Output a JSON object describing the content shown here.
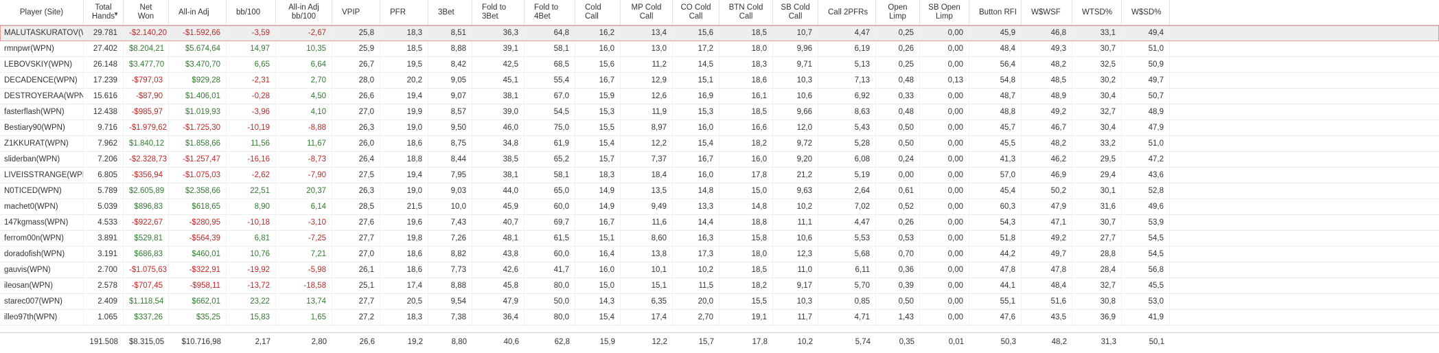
{
  "columns": [
    {
      "key": "player",
      "label": "Player (Site)",
      "align": "center"
    },
    {
      "key": "hands",
      "label": "Total\nHands",
      "align": "center",
      "sorted": true
    },
    {
      "key": "net",
      "label": "Net\nWon",
      "align": "center"
    },
    {
      "key": "allin",
      "label": "All-in Adj",
      "align": "left"
    },
    {
      "key": "bb100",
      "label": "bb/100",
      "align": "left"
    },
    {
      "key": "allinbb",
      "label": "All-in Adj\nbb/100",
      "align": "center"
    },
    {
      "key": "vpip",
      "label": "VPIP",
      "align": "left"
    },
    {
      "key": "pfr",
      "label": "PFR",
      "align": "left"
    },
    {
      "key": "threebet",
      "label": "3Bet",
      "align": "left"
    },
    {
      "key": "f3b",
      "label": "Fold to\n3Bet",
      "align": "left"
    },
    {
      "key": "f4b",
      "label": "Fold to\n4Bet",
      "align": "left"
    },
    {
      "key": "cc",
      "label": "Cold Call",
      "align": "left"
    },
    {
      "key": "mpcc",
      "label": "MP Cold\nCall",
      "align": "center"
    },
    {
      "key": "cocc",
      "label": "CO Cold\nCall",
      "align": "center"
    },
    {
      "key": "btncc",
      "label": "BTN Cold\nCall",
      "align": "center"
    },
    {
      "key": "sbcc",
      "label": "SB Cold\nCall",
      "align": "center"
    },
    {
      "key": "call2",
      "label": "Call 2PFRs",
      "align": "left"
    },
    {
      "key": "ol",
      "label": "Open\nLimp",
      "align": "center"
    },
    {
      "key": "sbol",
      "label": "SB Open\nLimp",
      "align": "center"
    },
    {
      "key": "rfi",
      "label": "Button RFI",
      "align": "left"
    },
    {
      "key": "wwsf",
      "label": "W$WSF",
      "align": "left"
    },
    {
      "key": "wtsd",
      "label": "WTSD%",
      "align": "left"
    },
    {
      "key": "wssd",
      "label": "W$SD%",
      "align": "left"
    }
  ],
  "rows": [
    [
      "MALUTASKURATOV(WP",
      "29.781",
      "-$2.140,20",
      "-$1.592,66",
      "-3,59",
      "-2,67",
      "25,8",
      "18,3",
      "8,51",
      "36,3",
      "64,8",
      "16,2",
      "13,4",
      "15,6",
      "18,5",
      "10,7",
      "4,47",
      "0,25",
      "0,00",
      "45,9",
      "46,8",
      "33,1",
      "49,4"
    ],
    [
      "rmnpwr(WPN)",
      "27.402",
      "$8.204,21",
      "$5.674,64",
      "14,97",
      "10,35",
      "25,9",
      "18,5",
      "8,88",
      "39,1",
      "58,1",
      "16,0",
      "13,0",
      "17,2",
      "18,0",
      "9,96",
      "6,19",
      "0,26",
      "0,00",
      "48,4",
      "49,3",
      "30,7",
      "51,0"
    ],
    [
      "LEBOVSKIY(WPN)",
      "26.148",
      "$3.477,70",
      "$3.470,70",
      "6,65",
      "6,64",
      "26,7",
      "19,5",
      "8,42",
      "42,5",
      "68,5",
      "15,6",
      "11,2",
      "14,5",
      "18,3",
      "9,71",
      "5,13",
      "0,25",
      "0,00",
      "56,4",
      "48,2",
      "32,5",
      "50,9"
    ],
    [
      "DECADENCE(WPN)",
      "17.239",
      "-$797,03",
      "$929,28",
      "-2,31",
      "2,70",
      "28,0",
      "20,2",
      "9,05",
      "45,1",
      "55,4",
      "16,7",
      "12,9",
      "15,1",
      "18,6",
      "10,3",
      "7,13",
      "0,48",
      "0,13",
      "54,8",
      "48,5",
      "30,2",
      "49,7"
    ],
    [
      "DESTROYERAA(WPN)",
      "15.616",
      "-$87,90",
      "$1.406,01",
      "-0,28",
      "4,50",
      "26,6",
      "19,4",
      "9,07",
      "38,1",
      "67,0",
      "15,9",
      "12,6",
      "16,9",
      "16,1",
      "10,6",
      "6,92",
      "0,33",
      "0,00",
      "48,7",
      "48,9",
      "30,4",
      "50,7"
    ],
    [
      "fasterflash(WPN)",
      "12.438",
      "-$985,97",
      "$1.019,93",
      "-3,96",
      "4,10",
      "27,0",
      "19,9",
      "8,57",
      "39,0",
      "54,5",
      "15,3",
      "11,9",
      "15,3",
      "18,5",
      "9,66",
      "8,63",
      "0,48",
      "0,00",
      "48,8",
      "49,2",
      "32,7",
      "48,9"
    ],
    [
      "Bestiary90(WPN)",
      "9.716",
      "-$1.979,62",
      "-$1.725,30",
      "-10,19",
      "-8,88",
      "26,3",
      "19,0",
      "9,50",
      "46,0",
      "75,0",
      "15,5",
      "8,97",
      "16,0",
      "16,6",
      "12,0",
      "5,43",
      "0,50",
      "0,00",
      "45,7",
      "46,7",
      "30,4",
      "47,9"
    ],
    [
      "Z1KKURAT(WPN)",
      "7.962",
      "$1.840,12",
      "$1.858,66",
      "11,56",
      "11,67",
      "26,0",
      "18,6",
      "8,75",
      "34,8",
      "61,9",
      "15,4",
      "12,2",
      "15,4",
      "18,2",
      "9,72",
      "5,28",
      "0,50",
      "0,00",
      "45,5",
      "48,2",
      "33,2",
      "51,0"
    ],
    [
      "sliderban(WPN)",
      "7.206",
      "-$2.328,73",
      "-$1.257,47",
      "-16,16",
      "-8,73",
      "26,4",
      "18,8",
      "8,44",
      "38,5",
      "65,2",
      "15,7",
      "7,37",
      "16,7",
      "16,0",
      "9,20",
      "6,08",
      "0,24",
      "0,00",
      "41,3",
      "46,2",
      "29,5",
      "47,2"
    ],
    [
      "LIVEISSTRANGE(WPN)",
      "6.805",
      "-$356,94",
      "-$1.075,03",
      "-2,62",
      "-7,90",
      "27,5",
      "19,4",
      "7,95",
      "38,1",
      "58,1",
      "18,3",
      "18,4",
      "16,0",
      "17,8",
      "21,2",
      "5,19",
      "0,00",
      "0,00",
      "57,0",
      "46,9",
      "29,4",
      "43,6"
    ],
    [
      "N0TICED(WPN)",
      "5.789",
      "$2.605,89",
      "$2.358,66",
      "22,51",
      "20,37",
      "26,3",
      "19,0",
      "9,03",
      "44,0",
      "65,0",
      "14,9",
      "13,5",
      "14,8",
      "15,0",
      "9,63",
      "2,64",
      "0,61",
      "0,00",
      "45,4",
      "50,2",
      "30,1",
      "52,8"
    ],
    [
      "machet0(WPN)",
      "5.039",
      "$896,83",
      "$618,65",
      "8,90",
      "6,14",
      "28,5",
      "21,5",
      "10,0",
      "45,9",
      "60,0",
      "14,9",
      "9,49",
      "13,3",
      "14,8",
      "10,2",
      "7,02",
      "0,52",
      "0,00",
      "60,3",
      "47,9",
      "31,6",
      "49,6"
    ],
    [
      "147kgmass(WPN)",
      "4.533",
      "-$922,67",
      "-$280,95",
      "-10,18",
      "-3,10",
      "27,6",
      "19,6",
      "7,43",
      "40,7",
      "69,7",
      "16,7",
      "11,6",
      "14,4",
      "18,8",
      "11,1",
      "4,47",
      "0,26",
      "0,00",
      "54,3",
      "47,1",
      "30,7",
      "53,9"
    ],
    [
      "ferrom00n(WPN)",
      "3.891",
      "$529,81",
      "-$564,39",
      "6,81",
      "-7,25",
      "27,7",
      "19,8",
      "7,26",
      "48,1",
      "61,5",
      "15,1",
      "8,60",
      "16,3",
      "15,8",
      "10,6",
      "5,53",
      "0,53",
      "0,00",
      "51,8",
      "49,2",
      "27,7",
      "54,5"
    ],
    [
      "doradofish(WPN)",
      "3.191",
      "$686,83",
      "$460,01",
      "10,76",
      "7,21",
      "27,0",
      "18,6",
      "8,82",
      "43,8",
      "60,0",
      "16,4",
      "13,8",
      "17,3",
      "18,0",
      "12,3",
      "5,68",
      "0,70",
      "0,00",
      "44,2",
      "49,7",
      "28,8",
      "54,5"
    ],
    [
      "gauvis(WPN)",
      "2.700",
      "-$1.075,63",
      "-$322,91",
      "-19,92",
      "-5,98",
      "26,1",
      "18,6",
      "7,73",
      "42,6",
      "41,7",
      "16,0",
      "10,1",
      "10,2",
      "18,5",
      "11,0",
      "6,11",
      "0,36",
      "0,00",
      "47,8",
      "47,8",
      "28,4",
      "56,8"
    ],
    [
      "ileosan(WPN)",
      "2.578",
      "-$707,45",
      "-$958,11",
      "-13,72",
      "-18,58",
      "25,1",
      "17,4",
      "8,88",
      "45,8",
      "80,0",
      "15,0",
      "15,1",
      "11,5",
      "18,2",
      "9,17",
      "5,70",
      "0,39",
      "0,00",
      "44,1",
      "48,4",
      "32,7",
      "45,5"
    ],
    [
      "starec007(WPN)",
      "2.409",
      "$1.118,54",
      "$662,01",
      "23,22",
      "13,74",
      "27,7",
      "20,5",
      "9,54",
      "47,9",
      "50,0",
      "14,3",
      "6,35",
      "20,0",
      "15,5",
      "10,3",
      "0,85",
      "0,50",
      "0,00",
      "55,1",
      "51,6",
      "30,8",
      "53,0"
    ],
    [
      "illeo97th(WPN)",
      "1.065",
      "$337,26",
      "$35,25",
      "15,83",
      "1,65",
      "27,2",
      "18,3",
      "7,38",
      "36,4",
      "80,0",
      "15,4",
      "17,4",
      "2,70",
      "19,1",
      "11,7",
      "4,71",
      "1,43",
      "0,00",
      "47,6",
      "43,5",
      "36,9",
      "41,9"
    ]
  ],
  "totals": [
    "",
    "191.508",
    "$8.315,05",
    "$10.716,98",
    "2,17",
    "2,80",
    "26,6",
    "19,2",
    "8,80",
    "40,6",
    "62,8",
    "15,9",
    "12,2",
    "15,7",
    "17,8",
    "10,2",
    "5,74",
    "0,35",
    "0,01",
    "50,3",
    "48,2",
    "31,3",
    "50,1"
  ],
  "icons": {
    "sort": "sort-descending-icon"
  },
  "colors": {
    "positive": "#2e7d2e",
    "negative": "#cc2222",
    "selected_border": "#e59a9a"
  }
}
